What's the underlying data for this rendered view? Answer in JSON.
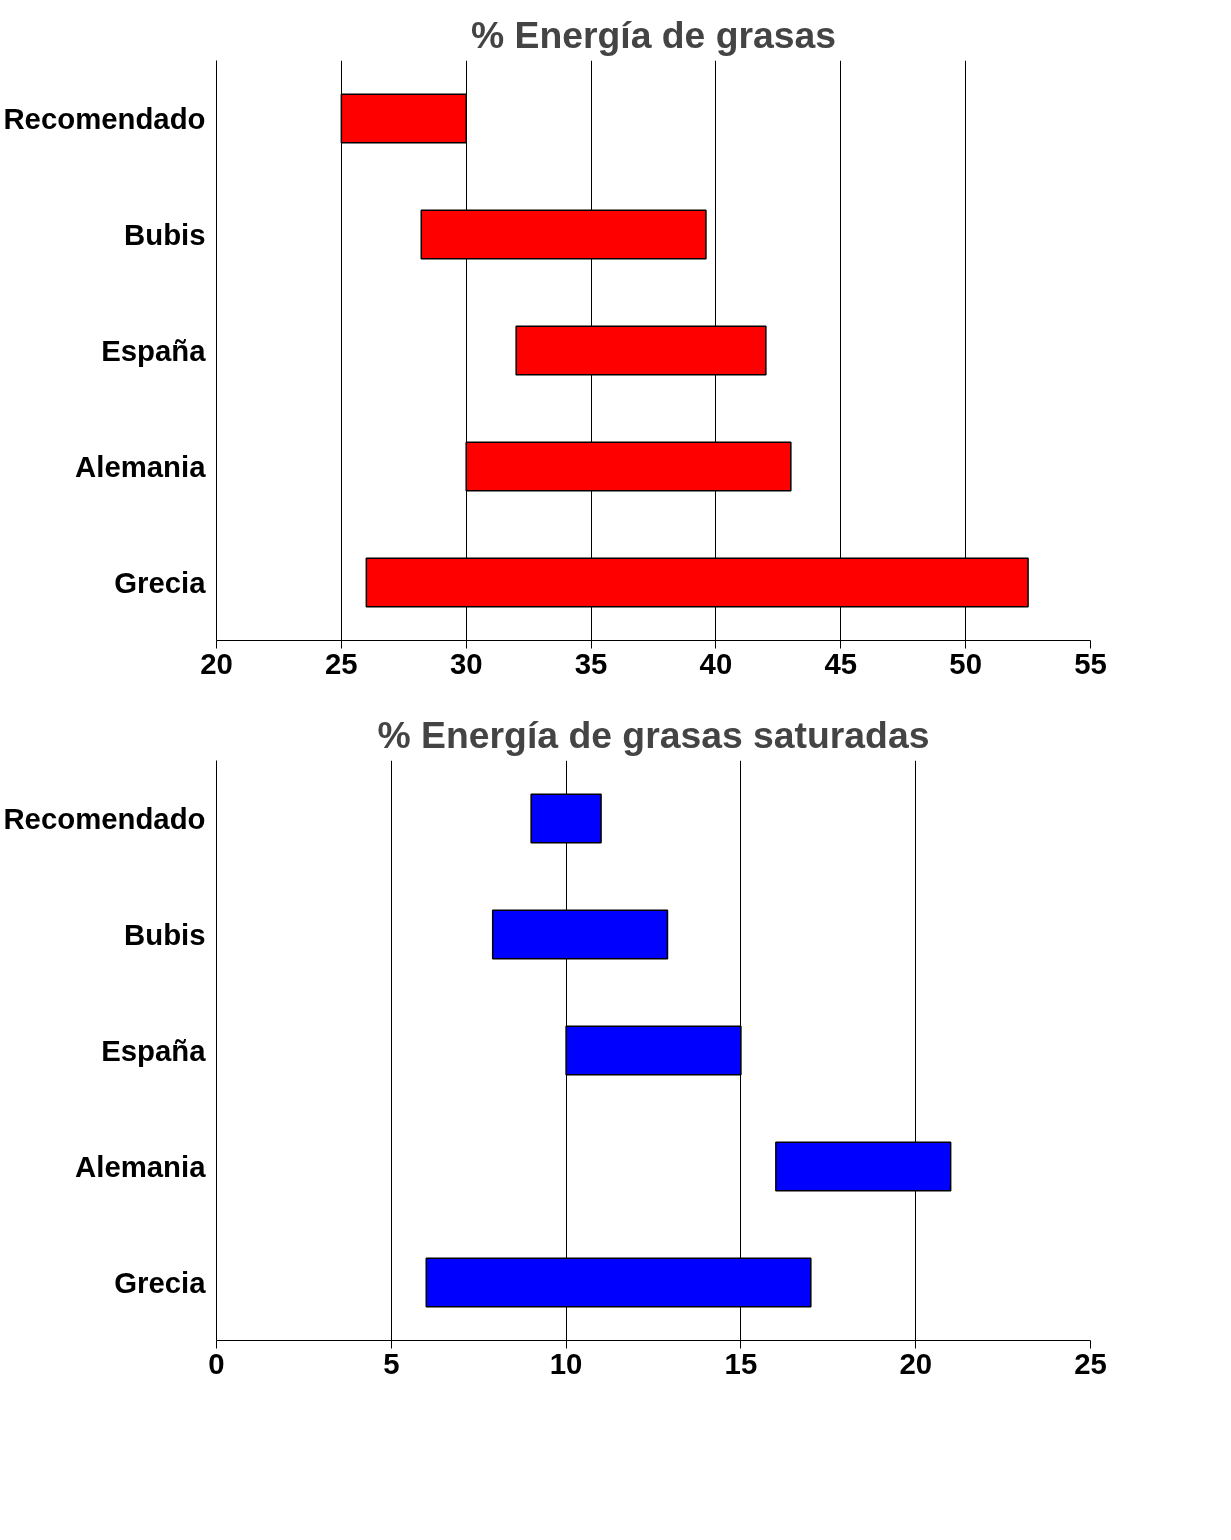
{
  "chart_data": [
    {
      "type": "bar",
      "orientation": "horizontal",
      "title": "% Energía de grasas",
      "categories": [
        "Recomendado",
        "Bubis",
        "España",
        "Alemania",
        "Grecia"
      ],
      "base": [
        25,
        28.2,
        32,
        30,
        26
      ],
      "values": [
        5,
        11.4,
        10,
        13,
        26.5
      ],
      "color": "#ff0000",
      "xlim": [
        20,
        55
      ],
      "xticks": [
        20,
        25,
        30,
        35,
        40,
        45,
        50,
        55
      ],
      "grid": "x"
    },
    {
      "type": "bar",
      "orientation": "horizontal",
      "title": "% Energía de grasas saturadas",
      "categories": [
        "Recomendado",
        "Bubis",
        "España",
        "Alemania",
        "Grecia"
      ],
      "base": [
        9,
        7.9,
        10,
        16,
        6
      ],
      "values": [
        2,
        5,
        5,
        5,
        11
      ],
      "color": "#0000ff",
      "xlim": [
        0,
        25
      ],
      "xticks": [
        0,
        5,
        10,
        15,
        20,
        25
      ],
      "grid": "x"
    }
  ]
}
